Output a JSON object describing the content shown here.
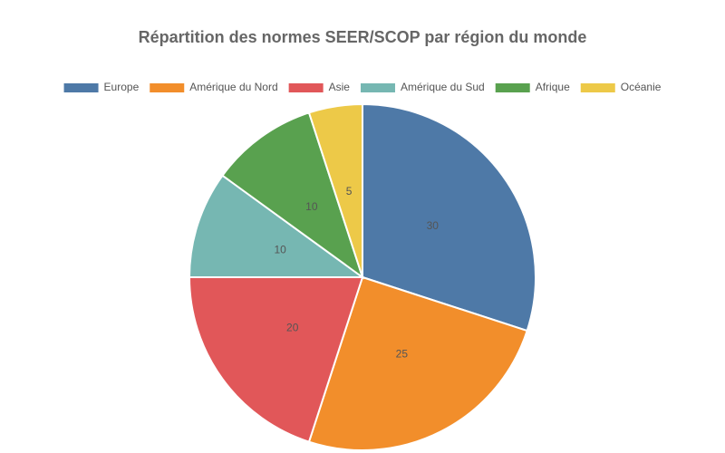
{
  "chart_data": {
    "type": "pie",
    "title": "Répartition des normes SEER/SCOP par région du monde",
    "categories": [
      "Europe",
      "Amérique du Nord",
      "Asie",
      "Amérique du Sud",
      "Afrique",
      "Océanie"
    ],
    "values": [
      30,
      25,
      20,
      10,
      10,
      5
    ],
    "colors": [
      "#4e79a7",
      "#f28e2b",
      "#e15759",
      "#76b7b2",
      "#59a14f",
      "#edc948"
    ],
    "legend": "top"
  }
}
